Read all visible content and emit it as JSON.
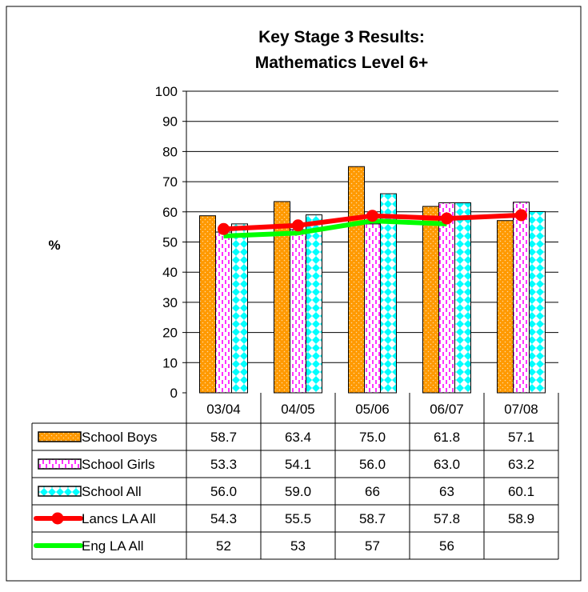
{
  "chart_data": {
    "type": "bar",
    "title": [
      "Key Stage 3 Results:",
      "Mathematics Level 6+"
    ],
    "ylabel": "%",
    "ylim": [
      0,
      100
    ],
    "yticks": [
      0,
      10,
      20,
      30,
      40,
      50,
      60,
      70,
      80,
      90,
      100
    ],
    "grid": true,
    "categories": [
      "03/04",
      "04/05",
      "05/06",
      "06/07",
      "07/08"
    ],
    "series": [
      {
        "name": "School Boys",
        "kind": "bar",
        "pattern": "dots",
        "color": "#ff9900",
        "values": [
          58.7,
          63.4,
          75.0,
          61.8,
          57.1
        ],
        "labels": [
          "58.7",
          "63.4",
          "75.0",
          "61.8",
          "57.1"
        ]
      },
      {
        "name": "School Girls",
        "kind": "bar",
        "pattern": "dashes",
        "color": "#ff00ff",
        "values": [
          53.3,
          54.1,
          56.0,
          63.0,
          63.2
        ],
        "labels": [
          "53.3",
          "54.1",
          "56.0",
          "63.0",
          "63.2"
        ]
      },
      {
        "name": "School All",
        "kind": "bar",
        "pattern": "diamonds",
        "color": "#00ffff",
        "values": [
          56.0,
          59.0,
          66,
          63,
          60.1
        ],
        "labels": [
          "56.0",
          "59.0",
          "66",
          "63",
          "60.1"
        ]
      },
      {
        "name": "Lancs LA All",
        "kind": "line",
        "color": "#ff0000",
        "values": [
          54.3,
          55.5,
          58.7,
          57.8,
          58.9
        ],
        "labels": [
          "54.3",
          "55.5",
          "58.7",
          "57.8",
          "58.9"
        ]
      },
      {
        "name": "Eng LA All",
        "kind": "line",
        "color": "#00ff00",
        "values": [
          52,
          53,
          57,
          56,
          null
        ],
        "labels": [
          "52",
          "53",
          "57",
          "56",
          ""
        ]
      }
    ]
  }
}
